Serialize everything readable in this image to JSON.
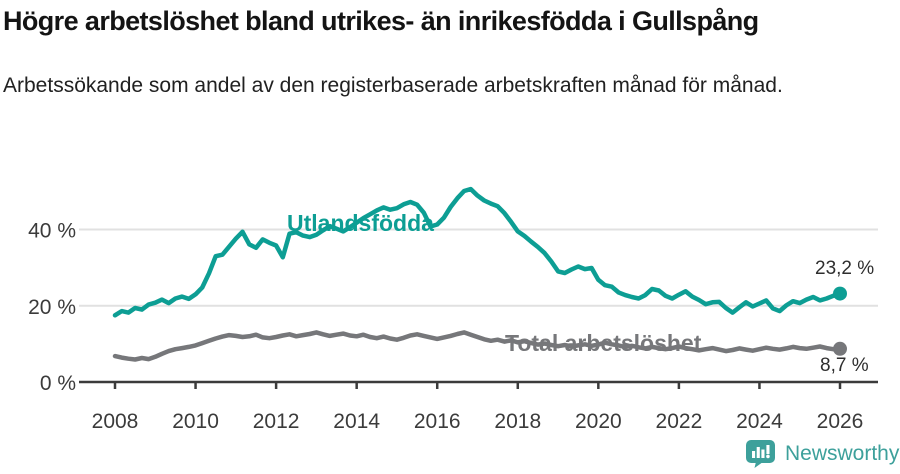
{
  "chart_data": {
    "type": "line",
    "title": "Högre arbetslöshet bland utrikes- än inrikesfödda i Gullspång",
    "subtitle": "Arbetssökande som andel av den registerbaserade arbetskraften månad för månad.",
    "xlabel": "",
    "ylabel": "",
    "xlim": [
      2008,
      2026
    ],
    "ylim": [
      0,
      52
    ],
    "grid": "horizontal",
    "legend_position": "inline-labels",
    "x_ticks": [
      2008,
      2010,
      2012,
      2014,
      2016,
      2018,
      2020,
      2022,
      2024,
      2026
    ],
    "y_ticks": [
      {
        "value": 0,
        "label": "0 %"
      },
      {
        "value": 20,
        "label": "20 %"
      },
      {
        "value": 40,
        "label": "40 %"
      }
    ],
    "x_start": 2008,
    "x_step_months": 2,
    "series": [
      {
        "name": "Utlandsfödda",
        "slug": "utlandsfodda",
        "inline_label": "Utlandsfödda",
        "end_label": "23,2 %",
        "end_value": 23.2,
        "color": "#0d9e94",
        "values": [
          17.5,
          18.6,
          18.2,
          19.4,
          19.0,
          20.3,
          20.8,
          21.6,
          20.7,
          21.9,
          22.4,
          21.8,
          23.0,
          24.8,
          28.5,
          33.0,
          33.4,
          35.5,
          37.6,
          39.4,
          36.1,
          35.2,
          37.4,
          36.5,
          35.8,
          32.7,
          38.9,
          39.3,
          38.4,
          38.0,
          38.6,
          39.8,
          40.9,
          40.2,
          39.5,
          40.6,
          41.8,
          43.0,
          44.0,
          45.0,
          45.8,
          45.2,
          45.6,
          46.6,
          47.2,
          46.5,
          44.4,
          40.8,
          41.3,
          43.1,
          45.9,
          48.2,
          50.1,
          50.6,
          48.9,
          47.6,
          46.8,
          46.1,
          44.3,
          42.0,
          39.5,
          38.3,
          36.8,
          35.4,
          33.8,
          31.6,
          29.0,
          28.6,
          29.5,
          30.3,
          29.6,
          29.9,
          26.8,
          25.4,
          25.0,
          23.5,
          22.8,
          22.3,
          21.9,
          22.8,
          24.4,
          24.0,
          22.6,
          21.9,
          22.9,
          23.8,
          22.4,
          21.5,
          20.4,
          20.9,
          21.0,
          19.4,
          18.2,
          19.6,
          20.9,
          19.8,
          20.6,
          21.4,
          19.3,
          18.6,
          20.1,
          21.2,
          20.7,
          21.6,
          22.3,
          21.4,
          21.9,
          22.6,
          23.2
        ]
      },
      {
        "name": "Total arbetslöshet",
        "slug": "total-arbetsloshet",
        "inline_label": "Total arbetslöshet",
        "end_label": "8,7 %",
        "end_value": 8.7,
        "color": "#76777a",
        "values": [
          6.8,
          6.4,
          6.1,
          5.9,
          6.3,
          6.0,
          6.6,
          7.4,
          8.1,
          8.6,
          8.9,
          9.2,
          9.6,
          10.2,
          10.8,
          11.4,
          11.9,
          12.3,
          12.1,
          11.8,
          12.0,
          12.4,
          11.7,
          11.5,
          11.8,
          12.2,
          12.5,
          12.0,
          12.3,
          12.6,
          13.0,
          12.5,
          12.1,
          12.4,
          12.7,
          12.2,
          12.0,
          12.4,
          11.8,
          11.5,
          11.9,
          11.4,
          11.1,
          11.6,
          12.2,
          12.5,
          12.1,
          11.7,
          11.3,
          11.7,
          12.1,
          12.6,
          13.0,
          12.4,
          11.8,
          11.2,
          10.8,
          11.1,
          10.6,
          10.9,
          10.4,
          10.7,
          10.2,
          9.8,
          10.1,
          9.7,
          9.4,
          9.7,
          9.3,
          9.6,
          9.9,
          9.5,
          9.8,
          10.3,
          9.9,
          9.6,
          9.2,
          9.5,
          9.1,
          8.8,
          9.2,
          8.9,
          8.6,
          8.9,
          9.3,
          8.9,
          8.6,
          8.3,
          8.6,
          8.9,
          8.5,
          8.1,
          8.4,
          8.8,
          8.5,
          8.2,
          8.6,
          9.0,
          8.7,
          8.5,
          8.8,
          9.2,
          8.9,
          8.7,
          9.0,
          9.3,
          8.9,
          8.6,
          8.7
        ]
      }
    ],
    "colors": {
      "grid": "#e1e1e1",
      "axis": "#3b3b3b",
      "tick_label": "#3b3b3b",
      "end_label": "#2e2e2e"
    }
  },
  "footer": {
    "brand": "Newsworthy",
    "brand_color": "#3da09b",
    "logo_icon": "bar-chart-speech-bubble-icon"
  }
}
